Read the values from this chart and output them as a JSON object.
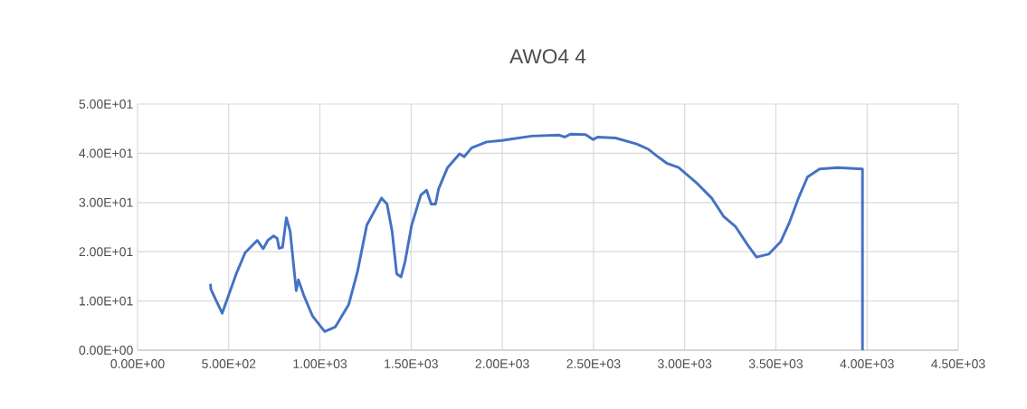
{
  "chart_data": {
    "type": "line",
    "title": "AWO4  4",
    "series": [
      {
        "color": "#4472c4",
        "x": [
          400,
          402,
          464,
          500,
          541,
          590,
          656,
          689,
          714,
          746,
          766,
          776,
          795,
          816,
          837,
          870,
          882,
          911,
          960,
          1026,
          1084,
          1158,
          1207,
          1257,
          1338,
          1368,
          1396,
          1421,
          1445,
          1467,
          1503,
          1553,
          1585,
          1610,
          1634,
          1651,
          1700,
          1766,
          1791,
          1832,
          1914,
          1997,
          2161,
          2309,
          2342,
          2375,
          2457,
          2498,
          2523,
          2621,
          2737,
          2802,
          2843,
          2901,
          2967,
          3065,
          3148,
          3213,
          3279,
          3345,
          3394,
          3460,
          3526,
          3575,
          3624,
          3674,
          3740,
          3838,
          3975,
          3975
        ],
        "values": [
          13.5,
          12.4,
          7.5,
          11.2,
          15.5,
          19.8,
          22.3,
          20.6,
          22.3,
          23.2,
          22.7,
          20.7,
          20.9,
          26.9,
          24.1,
          12.1,
          14.3,
          11.2,
          6.9,
          3.8,
          4.7,
          9.3,
          16.1,
          25.4,
          30.9,
          29.7,
          24.1,
          15.5,
          14.9,
          18.0,
          25.4,
          31.5,
          32.5,
          29.7,
          29.7,
          32.8,
          37.1,
          39.9,
          39.3,
          41.1,
          42.3,
          42.6,
          43.5,
          43.7,
          43.3,
          43.9,
          43.8,
          42.8,
          43.3,
          43.1,
          41.9,
          40.8,
          39.6,
          38.0,
          37.1,
          34.0,
          30.9,
          27.2,
          25.1,
          21.4,
          18.9,
          19.5,
          22.0,
          26.0,
          30.9,
          35.2,
          36.8,
          37.1,
          36.8,
          0
        ]
      }
    ],
    "xlim": [
      0,
      4500
    ],
    "xticks": [
      {
        "value": 0,
        "label": "0.00E+00"
      },
      {
        "value": 500,
        "label": "5.00E+02"
      },
      {
        "value": 1000,
        "label": "1.00E+03"
      },
      {
        "value": 1500,
        "label": "1.50E+03"
      },
      {
        "value": 2000,
        "label": "2.00E+03"
      },
      {
        "value": 2500,
        "label": "2.50E+03"
      },
      {
        "value": 3000,
        "label": "3.00E+03"
      },
      {
        "value": 3500,
        "label": "3.50E+03"
      },
      {
        "value": 4000,
        "label": "4.00E+03"
      },
      {
        "value": 4500,
        "label": "4.50E+03"
      }
    ],
    "ylim": [
      0,
      50
    ],
    "yticks": [
      {
        "value": 0,
        "label": "0.00E+00"
      },
      {
        "value": 10,
        "label": "1.00E+01"
      },
      {
        "value": 20,
        "label": "2.00E+01"
      },
      {
        "value": 30,
        "label": "3.00E+01"
      },
      {
        "value": 40,
        "label": "4.00E+01"
      },
      {
        "value": 50,
        "label": "5.00E+01"
      }
    ],
    "grid": true,
    "marker": "none",
    "line_style": "solid"
  }
}
